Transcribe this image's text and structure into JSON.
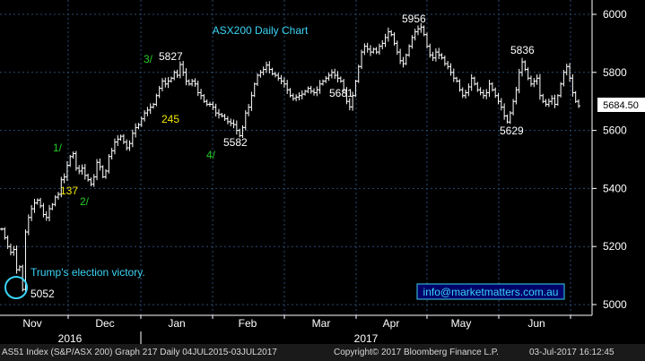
{
  "chart_data": {
    "type": "bar",
    "subtype": "ohlc-daily",
    "title": "ASX200 Daily Chart",
    "last_value_label": "5684.50",
    "ylim": [
      4970,
      6060
    ],
    "yticks": [
      5000,
      5200,
      5400,
      5600,
      5800,
      6000
    ],
    "x_month_labels": [
      "Nov",
      "Dec",
      "Jan",
      "Feb",
      "Mar",
      "Apr",
      "May",
      "Jun"
    ],
    "x_year_labels": [
      "2016",
      "2017"
    ],
    "closes": [
      5260,
      5230,
      5200,
      5180,
      5190,
      5120,
      5130,
      5052,
      5250,
      5300,
      5330,
      5350,
      5360,
      5340,
      5310,
      5300,
      5330,
      5345,
      5370,
      5380,
      5430,
      5440,
      5480,
      5510,
      5520,
      5470,
      5460,
      5470,
      5445,
      5430,
      5415,
      5440,
      5490,
      5475,
      5440,
      5460,
      5510,
      5530,
      5560,
      5570,
      5580,
      5560,
      5540,
      5555,
      5590,
      5610,
      5620,
      5640,
      5660,
      5670,
      5680,
      5690,
      5720,
      5745,
      5770,
      5760,
      5770,
      5780,
      5800,
      5790,
      5827,
      5800,
      5770,
      5760,
      5770,
      5760,
      5730,
      5720,
      5700,
      5690,
      5690,
      5680,
      5660,
      5655,
      5650,
      5640,
      5630,
      5625,
      5620,
      5600,
      5582,
      5610,
      5660,
      5680,
      5720,
      5760,
      5790,
      5800,
      5810,
      5825,
      5810,
      5795,
      5790,
      5780,
      5770,
      5760,
      5740,
      5720,
      5710,
      5715,
      5720,
      5725,
      5735,
      5745,
      5735,
      5730,
      5740,
      5760,
      5770,
      5780,
      5790,
      5800,
      5790,
      5780,
      5770,
      5740,
      5700,
      5681,
      5720,
      5770,
      5820,
      5870,
      5890,
      5880,
      5870,
      5880,
      5870,
      5890,
      5900,
      5920,
      5940,
      5930,
      5900,
      5870,
      5840,
      5830,
      5860,
      5890,
      5920,
      5940,
      5950,
      5956,
      5930,
      5890,
      5860,
      5850,
      5870,
      5860,
      5850,
      5830,
      5820,
      5800,
      5780,
      5770,
      5740,
      5720,
      5730,
      5750,
      5780,
      5760,
      5740,
      5730,
      5720,
      5730,
      5760,
      5740,
      5720,
      5700,
      5680,
      5650,
      5629,
      5660,
      5700,
      5740,
      5800,
      5836,
      5810,
      5780,
      5760,
      5770,
      5780,
      5720,
      5700,
      5690,
      5700,
      5710,
      5690,
      5720,
      5760,
      5800,
      5820,
      5780,
      5730,
      5700,
      5684.5
    ]
  },
  "annotations": {
    "wave_3": "3/",
    "peak_5827": "5827",
    "label_245": "245",
    "wave_4": "4/",
    "trough_5582": "5582",
    "wave_1": "1/",
    "label_137": "137",
    "wave_2": "2/",
    "low_5052": "5052",
    "election_note": "Trump's election victory.",
    "trough_5681": "5681",
    "peak_5956": "5956",
    "peak_5836": "5836",
    "trough_5629": "5629",
    "website": "info@marketmatters.com.au"
  },
  "colors": {
    "background": "#000000",
    "bars": "#ffffff",
    "grid": "#2a4a75",
    "axis_text": "#ffffff",
    "title": "#3ad4f5",
    "wave_labels": "#22cc22",
    "count_labels": "#f2e600",
    "note": "#3ad4f5",
    "price_tag_bg": "#ffffff",
    "footer_bg": "#1a1a1a"
  },
  "footer": {
    "index": "AS51 Index (S&P/ASX 200) Graph 217  Daily 04JUL2015-03JUL2017",
    "copyright": "Copyright© 2017 Bloomberg Finance L.P.",
    "timestamp": "03-Jul-2017 16:12:45"
  }
}
